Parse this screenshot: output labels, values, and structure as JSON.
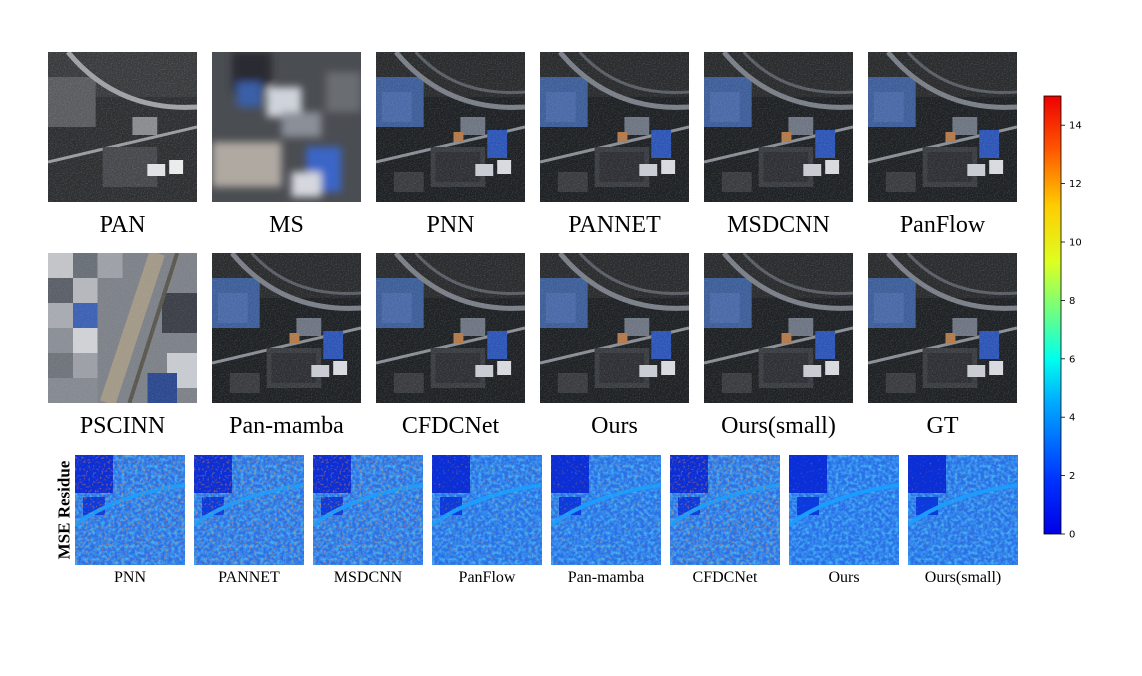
{
  "figure": {
    "row1": [
      "PAN",
      "MS",
      "PNN",
      "PANNET",
      "MSDCNN",
      "PanFlow"
    ],
    "row2": [
      "PSCINN",
      "Pan-mamba",
      "CFDCNet",
      "Ours",
      "Ours(small)",
      "GT"
    ],
    "residue_label": "MSE Residue",
    "row3": [
      "PNN",
      "PANNET",
      "MSDCNN",
      "PanFlow",
      "Pan-mamba",
      "CFDCNet",
      "Ours",
      "Ours(small)"
    ],
    "colorbar": {
      "min": 0,
      "max": 15,
      "ticks": [
        "0",
        "2",
        "4",
        "6",
        "8",
        "10",
        "12",
        "14"
      ],
      "colormap": "jet"
    }
  }
}
